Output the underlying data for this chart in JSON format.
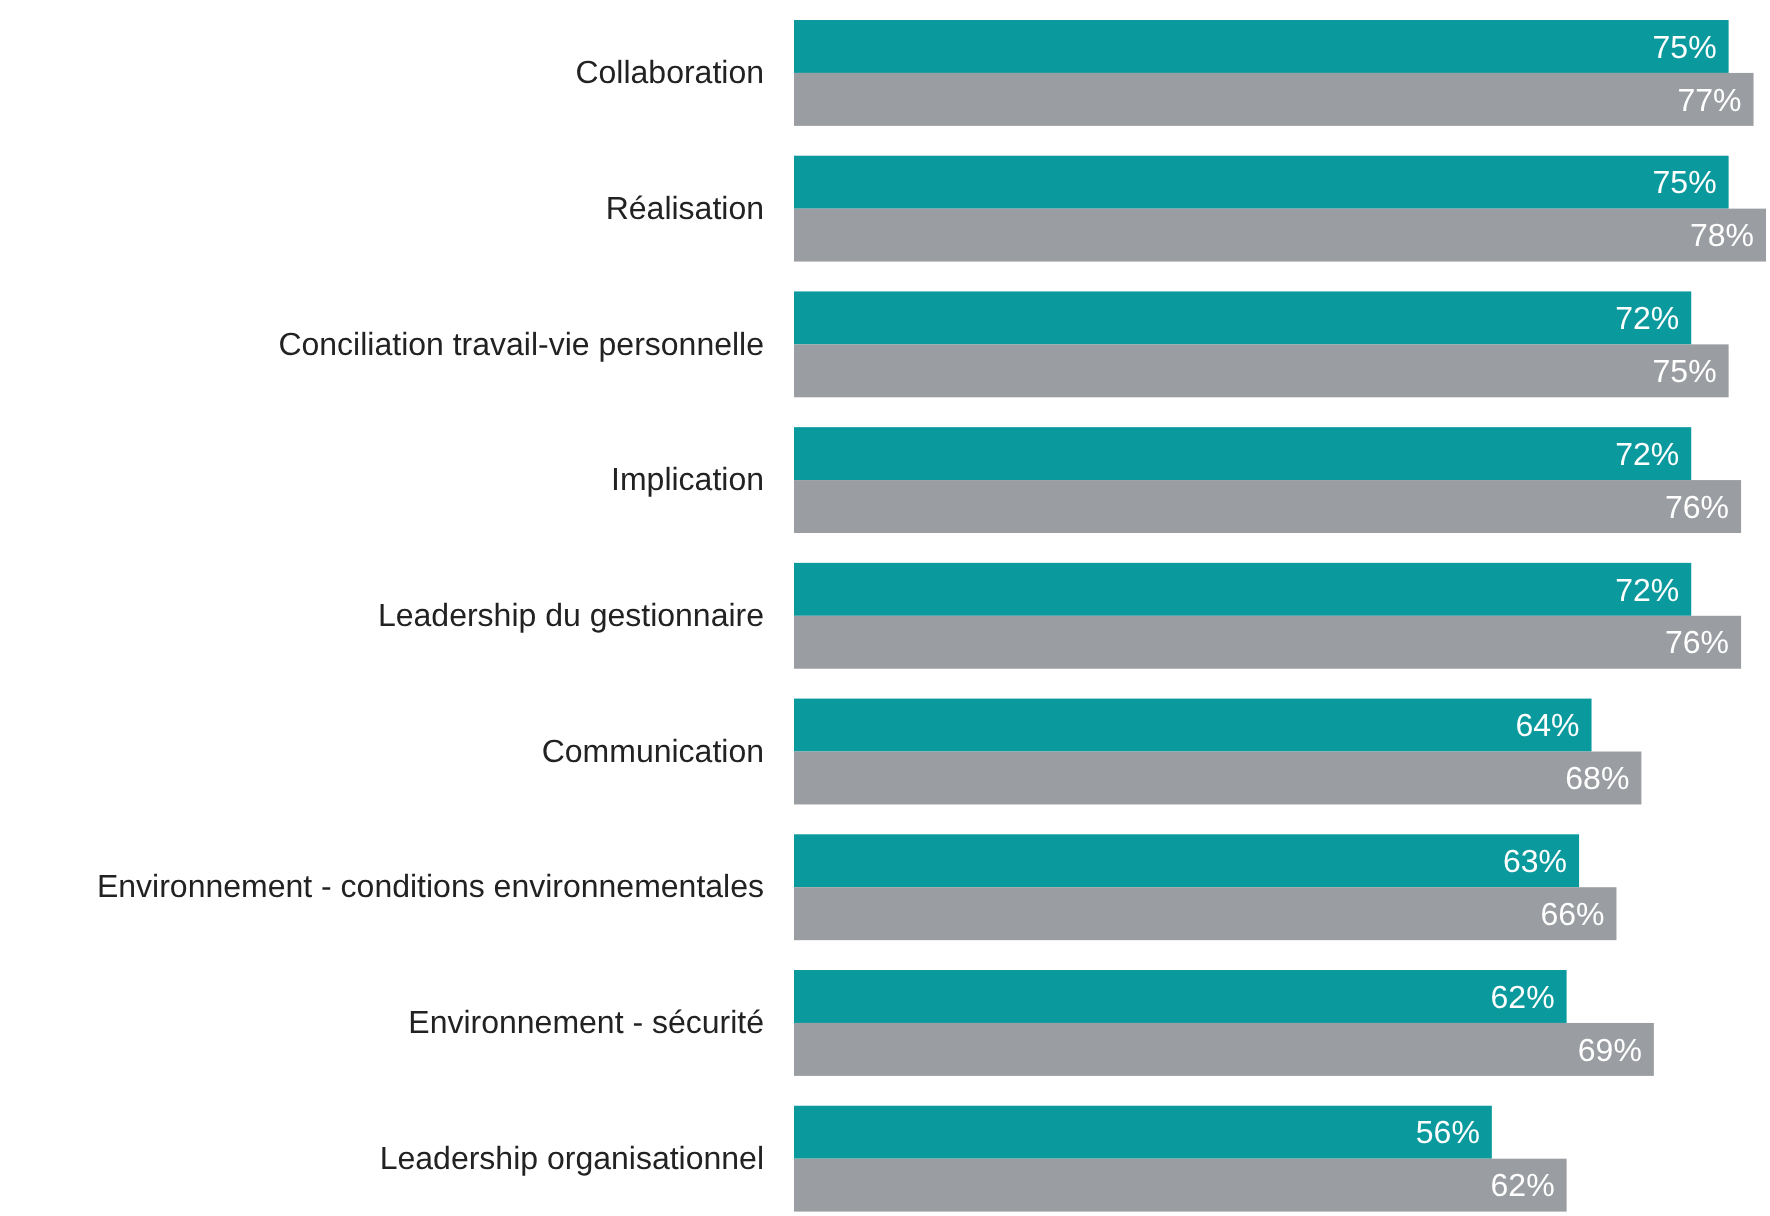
{
  "chart_data": {
    "type": "bar",
    "orientation": "horizontal",
    "categories": [
      "Collaboration",
      "Réalisation",
      "Conciliation travail-vie personnelle",
      "Implication",
      "Leadership du gestionnaire",
      "Communication",
      "Environnement - conditions environnementales",
      "Environnement - sécurité",
      "Leadership organisationnel"
    ],
    "xlim": [
      0,
      78
    ],
    "tick_labels": "y",
    "series": [
      {
        "color": "#0a9a9e",
        "values": [
          75,
          75,
          72,
          72,
          72,
          64,
          63,
          62,
          56
        ],
        "value_labels": [
          "75%",
          "75%",
          "72%",
          "72%",
          "72%",
          "64%",
          "63%",
          "62%",
          "56%"
        ]
      },
      {
        "color": "#9a9da1",
        "values": [
          77,
          78,
          75,
          76,
          76,
          68,
          66,
          69,
          62
        ],
        "value_labels": [
          "77%",
          "78%",
          "75%",
          "76%",
          "76%",
          "68%",
          "66%",
          "69%",
          "62%"
        ]
      }
    ]
  }
}
